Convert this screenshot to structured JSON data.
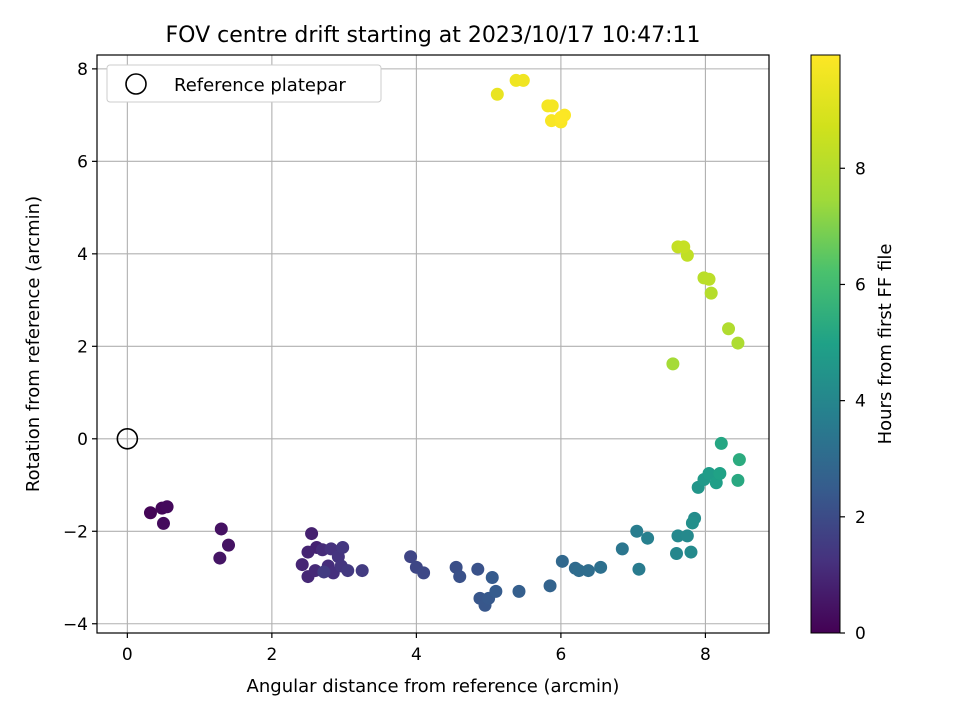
{
  "chart_data": {
    "type": "scatter",
    "title": "FOV centre drift starting at 2023/10/17 10:47:11",
    "xlabel": "Angular distance from reference (arcmin)",
    "ylabel": "Rotation from reference (arcmin)",
    "xlim": [
      -0.42,
      8.88
    ],
    "ylim": [
      -4.2,
      8.3
    ],
    "xticks": [
      0,
      2,
      4,
      6,
      8
    ],
    "yticks": [
      -4,
      -2,
      0,
      2,
      4,
      6,
      8
    ],
    "grid": true,
    "legend": {
      "position": "top-left",
      "entries": [
        "Reference platepar"
      ]
    },
    "reference_point": {
      "x": 0,
      "y": 0,
      "marker": "open-circle"
    },
    "colorbar": {
      "label": "Hours from first FF file",
      "range": [
        0,
        9.95
      ],
      "ticks": [
        0,
        2,
        4,
        6,
        8
      ],
      "colormap": "viridis"
    },
    "series": [
      {
        "points": [
          [
            0.32,
            -1.6,
            0.1
          ],
          [
            0.48,
            -1.5,
            0.15
          ],
          [
            0.55,
            -1.47,
            0.2
          ],
          [
            0.5,
            -1.83,
            0.25
          ],
          [
            1.3,
            -1.95,
            0.4
          ],
          [
            1.4,
            -2.3,
            0.45
          ],
          [
            1.28,
            -2.58,
            0.5
          ],
          [
            2.55,
            -2.05,
            0.8
          ],
          [
            2.62,
            -2.35,
            0.85
          ],
          [
            2.5,
            -2.45,
            0.9
          ],
          [
            2.42,
            -2.72,
            0.95
          ],
          [
            2.5,
            -2.98,
            1.0
          ],
          [
            2.6,
            -2.85,
            1.05
          ],
          [
            2.7,
            -2.4,
            1.1
          ],
          [
            2.78,
            -2.75,
            1.15
          ],
          [
            2.85,
            -2.9,
            1.2
          ],
          [
            2.82,
            -2.38,
            1.25
          ],
          [
            2.92,
            -2.55,
            1.3
          ],
          [
            2.96,
            -2.75,
            1.35
          ],
          [
            2.98,
            -2.35,
            1.4
          ],
          [
            3.05,
            -2.85,
            1.45
          ],
          [
            3.25,
            -2.85,
            1.5
          ],
          [
            2.72,
            -2.88,
            1.55
          ],
          [
            3.92,
            -2.55,
            1.8
          ],
          [
            4.0,
            -2.78,
            1.85
          ],
          [
            4.1,
            -2.9,
            1.9
          ],
          [
            4.55,
            -2.78,
            2.1
          ],
          [
            4.6,
            -2.98,
            2.15
          ],
          [
            4.85,
            -2.82,
            2.2
          ],
          [
            4.88,
            -3.45,
            2.3
          ],
          [
            4.95,
            -3.6,
            2.35
          ],
          [
            5.0,
            -3.45,
            2.4
          ],
          [
            5.05,
            -3.0,
            2.45
          ],
          [
            5.1,
            -3.3,
            2.5
          ],
          [
            5.42,
            -3.3,
            2.6
          ],
          [
            5.85,
            -3.18,
            2.75
          ],
          [
            6.02,
            -2.65,
            2.9
          ],
          [
            6.2,
            -2.8,
            3.0
          ],
          [
            6.25,
            -2.85,
            3.05
          ],
          [
            6.38,
            -2.85,
            3.1
          ],
          [
            6.55,
            -2.78,
            3.2
          ],
          [
            6.85,
            -2.38,
            3.4
          ],
          [
            7.08,
            -2.82,
            3.6
          ],
          [
            7.05,
            -2.0,
            3.65
          ],
          [
            7.2,
            -2.15,
            3.75
          ],
          [
            7.6,
            -2.48,
            4.0
          ],
          [
            7.62,
            -2.1,
            4.05
          ],
          [
            7.75,
            -2.1,
            4.1
          ],
          [
            7.8,
            -2.45,
            4.15
          ],
          [
            7.85,
            -1.72,
            4.2
          ],
          [
            7.82,
            -1.82,
            4.3
          ],
          [
            7.9,
            -1.05,
            4.55
          ],
          [
            7.98,
            -0.88,
            4.7
          ],
          [
            8.05,
            -0.75,
            4.8
          ],
          [
            8.15,
            -0.95,
            4.9
          ],
          [
            8.2,
            -0.75,
            5.0
          ],
          [
            8.22,
            -0.1,
            5.15
          ],
          [
            8.45,
            -0.9,
            5.25
          ],
          [
            8.47,
            -0.45,
            5.35
          ],
          [
            7.55,
            1.62,
            7.6
          ],
          [
            8.45,
            2.07,
            7.8
          ],
          [
            8.32,
            2.38,
            7.9
          ],
          [
            8.08,
            3.15,
            8.0
          ],
          [
            7.98,
            3.48,
            8.1
          ],
          [
            8.05,
            3.45,
            8.15
          ],
          [
            7.75,
            3.97,
            8.3
          ],
          [
            7.62,
            4.15,
            8.4
          ],
          [
            7.7,
            4.15,
            8.45
          ],
          [
            5.12,
            7.45,
            9.4
          ],
          [
            5.38,
            7.75,
            9.55
          ],
          [
            5.48,
            7.75,
            9.6
          ],
          [
            5.82,
            7.2,
            9.7
          ],
          [
            5.88,
            7.2,
            9.72
          ],
          [
            5.87,
            6.88,
            9.8
          ],
          [
            6.0,
            6.85,
            9.85
          ],
          [
            6.05,
            7.0,
            9.9
          ],
          [
            6.0,
            6.95,
            9.92
          ]
        ]
      }
    ]
  }
}
